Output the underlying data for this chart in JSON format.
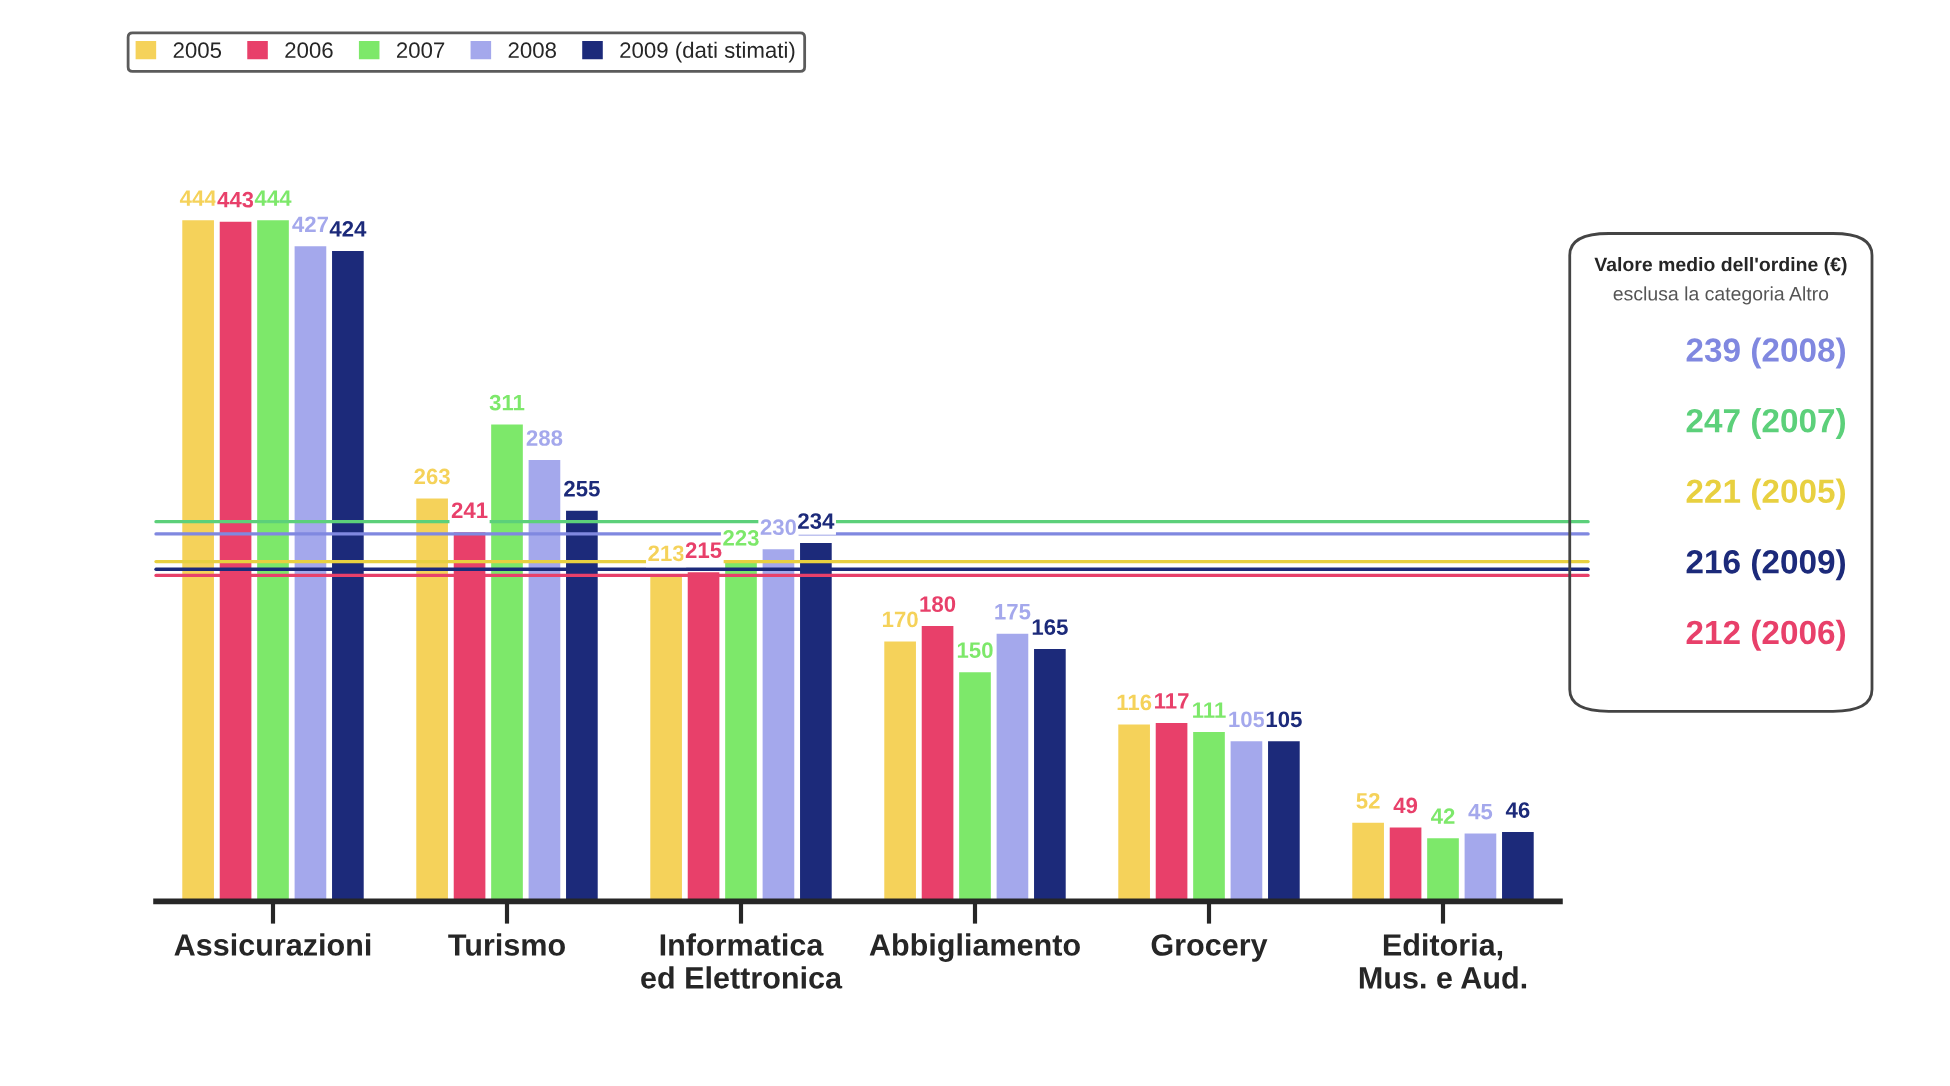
{
  "chart_data": {
    "type": "bar",
    "categories": [
      "Assicurazioni",
      "Turismo",
      "Informatica\ned Elettronica",
      "Abbigliamento",
      "Grocery",
      "Editoria,\nMus. e Aud."
    ],
    "series": [
      {
        "name": "2005",
        "color": "#f5d25a",
        "values": [
          444,
          263,
          213,
          170,
          116,
          52
        ]
      },
      {
        "name": "2006",
        "color": "#e8406a",
        "values": [
          443,
          241,
          215,
          180,
          117,
          49
        ]
      },
      {
        "name": "2007",
        "color": "#7de86a",
        "values": [
          444,
          311,
          223,
          150,
          111,
          42
        ]
      },
      {
        "name": "2008",
        "color": "#a4a8ec",
        "values": [
          427,
          288,
          230,
          175,
          105,
          45
        ]
      },
      {
        "name": "2009 (dati stimati)",
        "color": "#1c2a7a",
        "values": [
          424,
          255,
          234,
          165,
          105,
          46
        ]
      }
    ],
    "data_labels": true,
    "legend": "top left",
    "grid": false,
    "ref_lines": [
      {
        "axis": "y",
        "value": 239,
        "label": "239 (2008)",
        "color": "#8088e0"
      },
      {
        "axis": "y",
        "value": 247,
        "label": "247 (2007)",
        "color": "#5cd07a"
      },
      {
        "axis": "y",
        "value": 221,
        "label": "221 (2005)",
        "color": "#e8d040"
      },
      {
        "axis": "y",
        "value": 216,
        "label": "216 (2009)",
        "color": "#1c2a7a"
      },
      {
        "axis": "y",
        "value": 212,
        "label": "212 (2006)",
        "color": "#e8406a"
      }
    ],
    "annotations": [
      "Valore medio dell'ordine (€)",
      "esclusa la categoria Altro"
    ]
  }
}
